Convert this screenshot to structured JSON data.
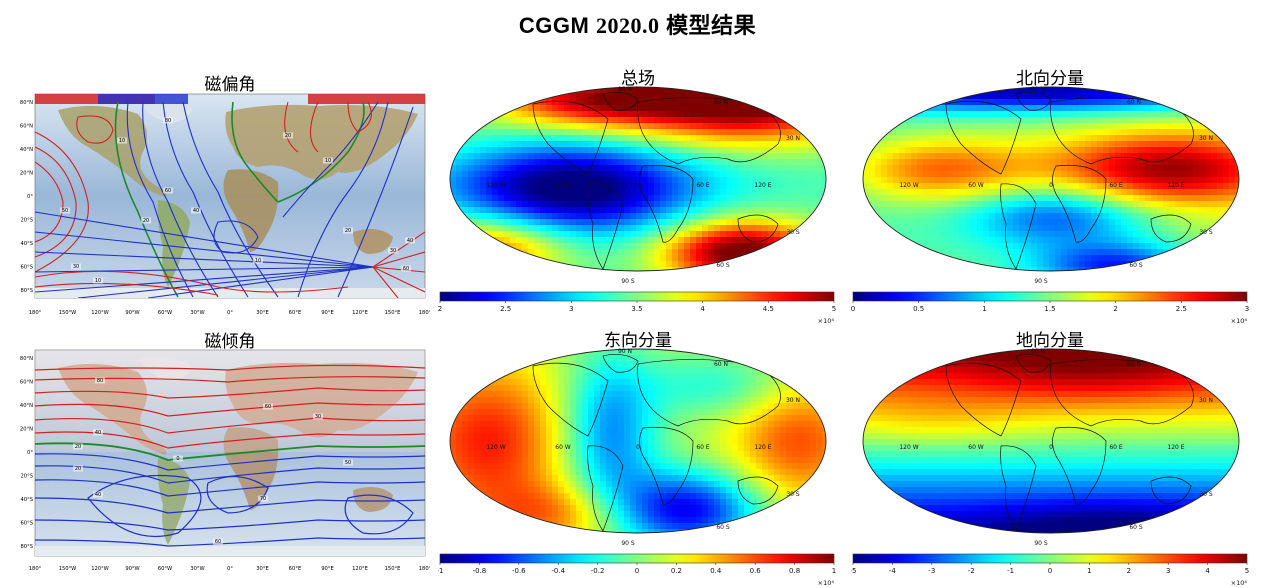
{
  "page_title": {
    "prefix": "CGGM ",
    "year": "2020.0",
    "suffix": " 模型结果"
  },
  "chart_data": [
    {
      "id": "declination",
      "type": "contour-map",
      "title": "磁偏角",
      "projection": "equirectangular",
      "lat_ticks": [
        "80°N",
        "60°N",
        "40°N",
        "20°N",
        "0°",
        "20°S",
        "40°S",
        "60°S",
        "80°S"
      ],
      "lon_ticks": [
        "180°",
        "150°W",
        "120°W",
        "90°W",
        "60°W",
        "30°W",
        "0°",
        "30°E",
        "60°E",
        "90°E",
        "120°E",
        "150°E",
        "180°"
      ],
      "contour_labels": [
        "30",
        "10",
        "50",
        "60",
        "20",
        "40",
        "10",
        "20",
        "30",
        "40",
        "60",
        "80",
        "20",
        "10",
        "10"
      ],
      "colors": {
        "positive": "#d42020",
        "negative": "#2030c8",
        "zero": "#1d8a2a"
      }
    },
    {
      "id": "total-field",
      "type": "heatmap",
      "title": "总场",
      "projection": "mollweide",
      "colorscale": "jet",
      "colorbar": {
        "ticks": [
          "2",
          "2.5",
          "3",
          "3.5",
          "4",
          "4.5",
          "5"
        ],
        "exponent_label": "×10⁴"
      },
      "map_labels": [
        "90 N",
        "60 N",
        "30 N",
        "120 W",
        "60 W",
        "0",
        "60 E",
        "120 E",
        "30 S",
        "60 S",
        "90 S"
      ]
    },
    {
      "id": "north-component",
      "type": "heatmap",
      "title": "北向分量",
      "projection": "mollweide",
      "colorscale": "jet",
      "colorbar": {
        "ticks": [
          "0",
          "0.5",
          "1",
          "1.5",
          "2",
          "2.5",
          "3"
        ],
        "exponent_label": "×10⁴"
      },
      "map_labels": [
        "90 N",
        "60 N",
        "30 N",
        "120 W",
        "60 W",
        "0",
        "60 E",
        "120 E",
        "30 S",
        "60 S",
        "90 S"
      ]
    },
    {
      "id": "inclination",
      "type": "contour-map",
      "title": "磁倾角",
      "projection": "equirectangular",
      "lat_ticks": [
        "80°N",
        "60°N",
        "40°N",
        "20°N",
        "0°",
        "20°S",
        "40°S",
        "60°S",
        "80°S"
      ],
      "lon_ticks": [
        "180°",
        "150°W",
        "120°W",
        "90°W",
        "60°W",
        "30°W",
        "0°",
        "30°E",
        "60°E",
        "90°E",
        "120°E",
        "150°E",
        "180°"
      ],
      "contour_labels": [
        "80",
        "60",
        "40",
        "20",
        "0",
        "20",
        "40",
        "60",
        "70",
        "30",
        "50"
      ],
      "colors": {
        "positive": "#d42020",
        "negative": "#2030c8",
        "zero": "#1d8a2a"
      }
    },
    {
      "id": "east-component",
      "type": "heatmap",
      "title": "东向分量",
      "projection": "mollweide",
      "colorscale": "jet",
      "colorbar": {
        "ticks": [
          "-1",
          "-0.8",
          "-0.6",
          "-0.4",
          "-0.2",
          "0",
          "0.2",
          "0.4",
          "0.6",
          "0.8",
          "1"
        ],
        "exponent_label": "×10⁴"
      },
      "map_labels": [
        "90 N",
        "60 N",
        "30 N",
        "120 W",
        "60 W",
        "0",
        "60 E",
        "120 E",
        "30 S",
        "60 S",
        "90 S"
      ]
    },
    {
      "id": "down-component",
      "type": "heatmap",
      "title": "地向分量",
      "projection": "mollweide",
      "colorscale": "jet",
      "colorbar": {
        "ticks": [
          "-5",
          "-4",
          "-3",
          "-2",
          "-1",
          "0",
          "1",
          "2",
          "3",
          "4",
          "5"
        ],
        "exponent_label": "×10⁴"
      },
      "map_labels": [
        "90 N",
        "60 N",
        "30 N",
        "120 W",
        "60 W",
        "0",
        "60 E",
        "120 E",
        "30 S",
        "60 S",
        "90 S"
      ]
    }
  ]
}
